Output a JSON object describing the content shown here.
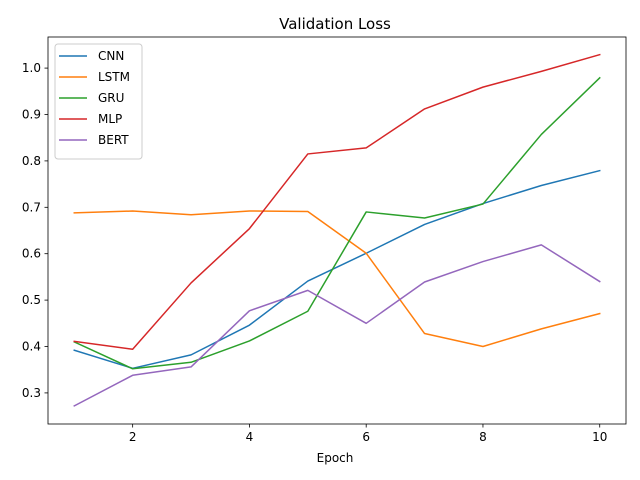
{
  "chart_data": {
    "type": "line",
    "title": "Validation Loss",
    "xlabel": "Epoch",
    "ylabel": "",
    "x": [
      1,
      2,
      3,
      4,
      5,
      6,
      7,
      8,
      9,
      10
    ],
    "xlim": [
      0.55,
      10.45
    ],
    "ylim": [
      0.233,
      1.067
    ],
    "xticks": [
      2,
      4,
      6,
      8,
      10
    ],
    "yticks": [
      0.3,
      0.4,
      0.5,
      0.6,
      0.7,
      0.8,
      0.9,
      1.0
    ],
    "ytick_labels": [
      "0.3",
      "0.4",
      "0.5",
      "0.6",
      "0.7",
      "0.8",
      "0.9",
      "1.0"
    ],
    "grid": false,
    "legend_position": "top-left",
    "series": [
      {
        "name": "CNN",
        "color": "#1f77b4",
        "values": [
          0.392,
          0.353,
          0.382,
          0.446,
          0.541,
          0.601,
          0.663,
          0.708,
          0.747,
          0.779
        ]
      },
      {
        "name": "LSTM",
        "color": "#ff7f0e",
        "values": [
          0.688,
          0.692,
          0.684,
          0.692,
          0.691,
          0.601,
          0.428,
          0.4,
          0.438,
          0.471
        ]
      },
      {
        "name": "GRU",
        "color": "#2ca02c",
        "values": [
          0.41,
          0.352,
          0.366,
          0.412,
          0.476,
          0.69,
          0.677,
          0.707,
          0.857,
          0.979
        ]
      },
      {
        "name": "MLP",
        "color": "#d62728",
        "values": [
          0.411,
          0.394,
          0.537,
          0.654,
          0.815,
          0.828,
          0.912,
          0.959,
          0.993,
          1.029
        ]
      },
      {
        "name": "BERT",
        "color": "#9467bd",
        "values": [
          0.272,
          0.338,
          0.356,
          0.477,
          0.521,
          0.45,
          0.539,
          0.583,
          0.619,
          0.54
        ]
      }
    ]
  }
}
